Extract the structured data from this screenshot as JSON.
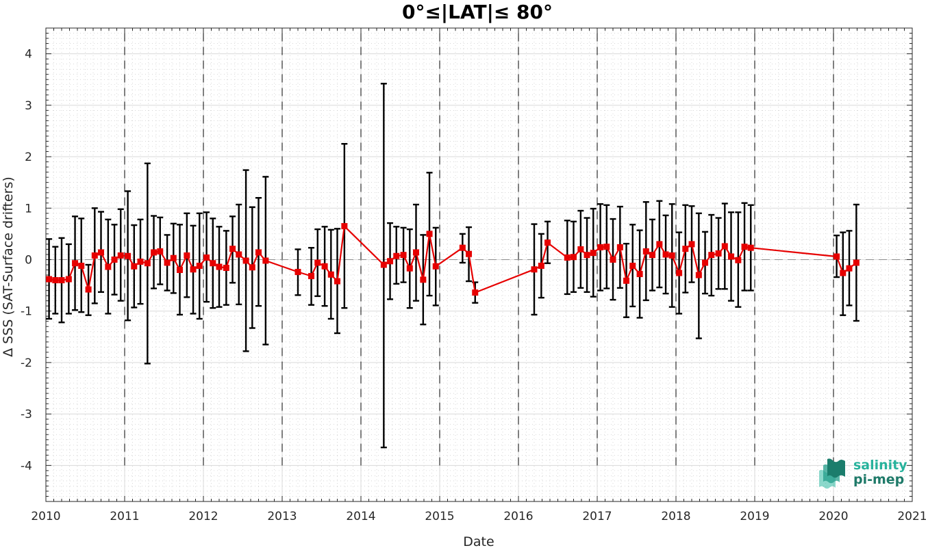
{
  "chart_data": {
    "type": "line",
    "title": "0°≤|LAT|≤ 80°",
    "xlabel": "Date",
    "ylabel": "Δ SSS (SAT-Surface drifters)",
    "xlim": [
      2010,
      2021
    ],
    "ylim": [
      -4.7,
      4.5
    ],
    "x_ticks": [
      "2010",
      "2011",
      "2012",
      "2013",
      "2014",
      "2015",
      "2016",
      "2017",
      "2018",
      "2019",
      "2020",
      "2021"
    ],
    "y_ticks": [
      "4",
      "3",
      "2",
      "1",
      "0",
      "-1",
      "-2",
      "-3",
      "-4"
    ],
    "grid": true,
    "reference_line": 0,
    "year_separators": [
      2011,
      2012,
      2013,
      2014,
      2015,
      2016,
      2017,
      2018,
      2019,
      2020
    ],
    "colors": {
      "series": "#e60000",
      "errorbar": "#000000",
      "grid": "#dcdcdc",
      "logo_dark": "#1f7a69",
      "logo_light": "#27b29c"
    },
    "series": [
      {
        "points": [
          {
            "x": 2010.04,
            "y": -0.38,
            "lo": -1.15,
            "hi": 0.4
          },
          {
            "x": 2010.12,
            "y": -0.4,
            "lo": -1.05,
            "hi": 0.25
          },
          {
            "x": 2010.2,
            "y": -0.4,
            "lo": -1.22,
            "hi": 0.42
          },
          {
            "x": 2010.29,
            "y": -0.38,
            "lo": -1.05,
            "hi": 0.3
          },
          {
            "x": 2010.37,
            "y": -0.07,
            "lo": -0.98,
            "hi": 0.84
          },
          {
            "x": 2010.45,
            "y": -0.12,
            "lo": -1.02,
            "hi": 0.8
          },
          {
            "x": 2010.54,
            "y": -0.58,
            "lo": -1.08,
            "hi": -0.1
          },
          {
            "x": 2010.62,
            "y": 0.08,
            "lo": -0.85,
            "hi": 1.0
          },
          {
            "x": 2010.7,
            "y": 0.14,
            "lo": -0.63,
            "hi": 0.93
          },
          {
            "x": 2010.79,
            "y": -0.14,
            "lo": -1.05,
            "hi": 0.78
          },
          {
            "x": 2010.87,
            "y": 0.0,
            "lo": -0.68,
            "hi": 0.68
          },
          {
            "x": 2010.95,
            "y": 0.08,
            "lo": -0.8,
            "hi": 0.98
          },
          {
            "x": 2011.04,
            "y": 0.07,
            "lo": -1.18,
            "hi": 1.33
          },
          {
            "x": 2011.12,
            "y": -0.13,
            "lo": -0.93,
            "hi": 0.67
          },
          {
            "x": 2011.2,
            "y": -0.04,
            "lo": -0.86,
            "hi": 0.78
          },
          {
            "x": 2011.29,
            "y": -0.07,
            "lo": -2.02,
            "hi": 1.87
          },
          {
            "x": 2011.37,
            "y": 0.14,
            "lo": -0.56,
            "hi": 0.85
          },
          {
            "x": 2011.45,
            "y": 0.16,
            "lo": -0.48,
            "hi": 0.82
          },
          {
            "x": 2011.54,
            "y": -0.06,
            "lo": -0.6,
            "hi": 0.48
          },
          {
            "x": 2011.62,
            "y": 0.03,
            "lo": -0.65,
            "hi": 0.7
          },
          {
            "x": 2011.7,
            "y": -0.2,
            "lo": -1.07,
            "hi": 0.68
          },
          {
            "x": 2011.79,
            "y": 0.08,
            "lo": -0.73,
            "hi": 0.9
          },
          {
            "x": 2011.87,
            "y": -0.19,
            "lo": -1.05,
            "hi": 0.66
          },
          {
            "x": 2011.95,
            "y": -0.12,
            "lo": -1.15,
            "hi": 0.9
          },
          {
            "x": 2012.04,
            "y": 0.04,
            "lo": -0.82,
            "hi": 0.92
          },
          {
            "x": 2012.12,
            "y": -0.07,
            "lo": -0.94,
            "hi": 0.8
          },
          {
            "x": 2012.2,
            "y": -0.14,
            "lo": -0.92,
            "hi": 0.64
          },
          {
            "x": 2012.29,
            "y": -0.16,
            "lo": -0.88,
            "hi": 0.56
          },
          {
            "x": 2012.37,
            "y": 0.21,
            "lo": -0.45,
            "hi": 0.84
          },
          {
            "x": 2012.45,
            "y": 0.1,
            "lo": -0.87,
            "hi": 1.07
          },
          {
            "x": 2012.54,
            "y": -0.02,
            "lo": -1.78,
            "hi": 1.74
          },
          {
            "x": 2012.62,
            "y": -0.15,
            "lo": -1.33,
            "hi": 1.02
          },
          {
            "x": 2012.7,
            "y": 0.14,
            "lo": -0.9,
            "hi": 1.2
          },
          {
            "x": 2012.79,
            "y": -0.02,
            "lo": -1.65,
            "hi": 1.61
          },
          {
            "x": 2013.2,
            "y": -0.24,
            "lo": -0.69,
            "hi": 0.2
          },
          {
            "x": 2013.37,
            "y": -0.32,
            "lo": -0.88,
            "hi": 0.23
          },
          {
            "x": 2013.45,
            "y": -0.06,
            "lo": -0.71,
            "hi": 0.59
          },
          {
            "x": 2013.54,
            "y": -0.13,
            "lo": -0.9,
            "hi": 0.64
          },
          {
            "x": 2013.62,
            "y": -0.29,
            "lo": -1.15,
            "hi": 0.58
          },
          {
            "x": 2013.7,
            "y": -0.42,
            "lo": -1.43,
            "hi": 0.6
          },
          {
            "x": 2013.79,
            "y": 0.65,
            "lo": -0.94,
            "hi": 2.25
          },
          {
            "x": 2014.29,
            "y": -0.1,
            "lo": -3.65,
            "hi": 3.42
          },
          {
            "x": 2014.37,
            "y": -0.03,
            "lo": -0.77,
            "hi": 0.71
          },
          {
            "x": 2014.45,
            "y": 0.07,
            "lo": -0.47,
            "hi": 0.64
          },
          {
            "x": 2014.54,
            "y": 0.09,
            "lo": -0.44,
            "hi": 0.62
          },
          {
            "x": 2014.62,
            "y": -0.17,
            "lo": -0.94,
            "hi": 0.59
          },
          {
            "x": 2014.7,
            "y": 0.14,
            "lo": -0.8,
            "hi": 1.07
          },
          {
            "x": 2014.79,
            "y": -0.39,
            "lo": -1.26,
            "hi": 0.48
          },
          {
            "x": 2014.87,
            "y": 0.5,
            "lo": -0.7,
            "hi": 1.69
          },
          {
            "x": 2014.95,
            "y": -0.13,
            "lo": -0.89,
            "hi": 0.62
          },
          {
            "x": 2015.29,
            "y": 0.23,
            "lo": -0.06,
            "hi": 0.5
          },
          {
            "x": 2015.37,
            "y": 0.11,
            "lo": -0.42,
            "hi": 0.63
          },
          {
            "x": 2015.45,
            "y": -0.64,
            "lo": -0.84,
            "hi": -0.44
          },
          {
            "x": 2016.2,
            "y": -0.19,
            "lo": -1.07,
            "hi": 0.69
          },
          {
            "x": 2016.29,
            "y": -0.12,
            "lo": -0.74,
            "hi": 0.5
          },
          {
            "x": 2016.37,
            "y": 0.33,
            "lo": -0.07,
            "hi": 0.74
          },
          {
            "x": 2016.62,
            "y": 0.04,
            "lo": -0.67,
            "hi": 0.76
          },
          {
            "x": 2016.7,
            "y": 0.05,
            "lo": -0.63,
            "hi": 0.74
          },
          {
            "x": 2016.79,
            "y": 0.2,
            "lo": -0.55,
            "hi": 0.95
          },
          {
            "x": 2016.87,
            "y": 0.09,
            "lo": -0.63,
            "hi": 0.81
          },
          {
            "x": 2016.95,
            "y": 0.13,
            "lo": -0.72,
            "hi": 0.99
          },
          {
            "x": 2017.04,
            "y": 0.24,
            "lo": -0.6,
            "hi": 1.08
          },
          {
            "x": 2017.12,
            "y": 0.25,
            "lo": -0.56,
            "hi": 1.06
          },
          {
            "x": 2017.2,
            "y": 0.0,
            "lo": -0.78,
            "hi": 0.79
          },
          {
            "x": 2017.29,
            "y": 0.24,
            "lo": -0.55,
            "hi": 1.03
          },
          {
            "x": 2017.37,
            "y": -0.41,
            "lo": -1.12,
            "hi": 0.31
          },
          {
            "x": 2017.45,
            "y": -0.12,
            "lo": -0.91,
            "hi": 0.68
          },
          {
            "x": 2017.54,
            "y": -0.28,
            "lo": -1.13,
            "hi": 0.57
          },
          {
            "x": 2017.62,
            "y": 0.16,
            "lo": -0.79,
            "hi": 1.12
          },
          {
            "x": 2017.7,
            "y": 0.09,
            "lo": -0.6,
            "hi": 0.78
          },
          {
            "x": 2017.79,
            "y": 0.3,
            "lo": -0.54,
            "hi": 1.14
          },
          {
            "x": 2017.87,
            "y": 0.1,
            "lo": -0.66,
            "hi": 0.86
          },
          {
            "x": 2017.95,
            "y": 0.08,
            "lo": -0.92,
            "hi": 1.08
          },
          {
            "x": 2018.04,
            "y": -0.26,
            "lo": -1.05,
            "hi": 0.53
          },
          {
            "x": 2018.12,
            "y": 0.21,
            "lo": -0.64,
            "hi": 1.06
          },
          {
            "x": 2018.2,
            "y": 0.3,
            "lo": -0.44,
            "hi": 1.04
          },
          {
            "x": 2018.29,
            "y": -0.3,
            "lo": -1.53,
            "hi": 0.9
          },
          {
            "x": 2018.37,
            "y": -0.06,
            "lo": -0.66,
            "hi": 0.54
          },
          {
            "x": 2018.45,
            "y": 0.09,
            "lo": -0.7,
            "hi": 0.87
          },
          {
            "x": 2018.54,
            "y": 0.12,
            "lo": -0.57,
            "hi": 0.81
          },
          {
            "x": 2018.62,
            "y": 0.26,
            "lo": -0.57,
            "hi": 1.09
          },
          {
            "x": 2018.7,
            "y": 0.06,
            "lo": -0.8,
            "hi": 0.92
          },
          {
            "x": 2018.79,
            "y": -0.01,
            "lo": -0.92,
            "hi": 0.92
          },
          {
            "x": 2018.87,
            "y": 0.25,
            "lo": -0.6,
            "hi": 1.1
          },
          {
            "x": 2018.95,
            "y": 0.23,
            "lo": -0.6,
            "hi": 1.06
          },
          {
            "x": 2020.04,
            "y": 0.06,
            "lo": -0.34,
            "hi": 0.47
          },
          {
            "x": 2020.12,
            "y": -0.26,
            "lo": -1.08,
            "hi": 0.53
          },
          {
            "x": 2020.2,
            "y": -0.17,
            "lo": -0.89,
            "hi": 0.56
          },
          {
            "x": 2020.29,
            "y": -0.06,
            "lo": -1.19,
            "hi": 1.07
          }
        ]
      }
    ]
  },
  "logo": {
    "line1": "salinity",
    "line2": "pi-mep"
  }
}
